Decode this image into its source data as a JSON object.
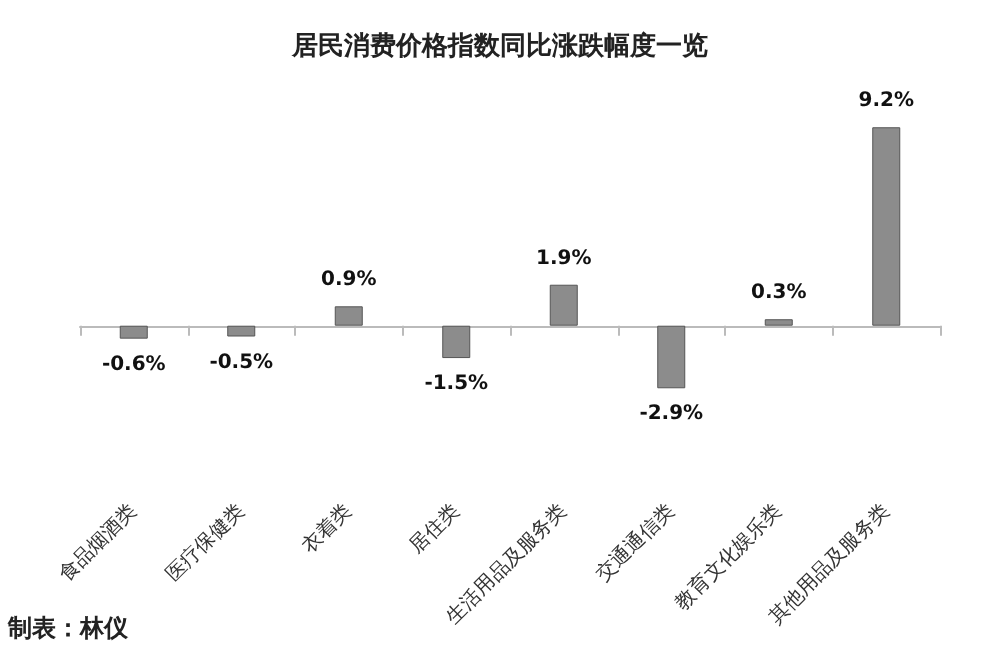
{
  "chart_data": {
    "type": "bar",
    "title": "居民消费价格指数同比涨跌幅度一览",
    "categories": [
      "食品烟酒类",
      "医疗保健类",
      "衣着类",
      "居住类",
      "生活用品及服务类",
      "交通通信类",
      "教育文化娱乐类",
      "其他用品及服务类"
    ],
    "values": [
      -0.6,
      -0.5,
      0.9,
      -1.5,
      1.9,
      -2.9,
      0.3,
      9.2
    ],
    "value_labels": [
      "-0.6%",
      "-0.5%",
      "0.9%",
      "-1.5%",
      "1.9%",
      "-2.9%",
      "0.3%",
      "9.2%"
    ],
    "color": "#8c8c8c",
    "annotations": [
      "制表：林仪"
    ]
  }
}
